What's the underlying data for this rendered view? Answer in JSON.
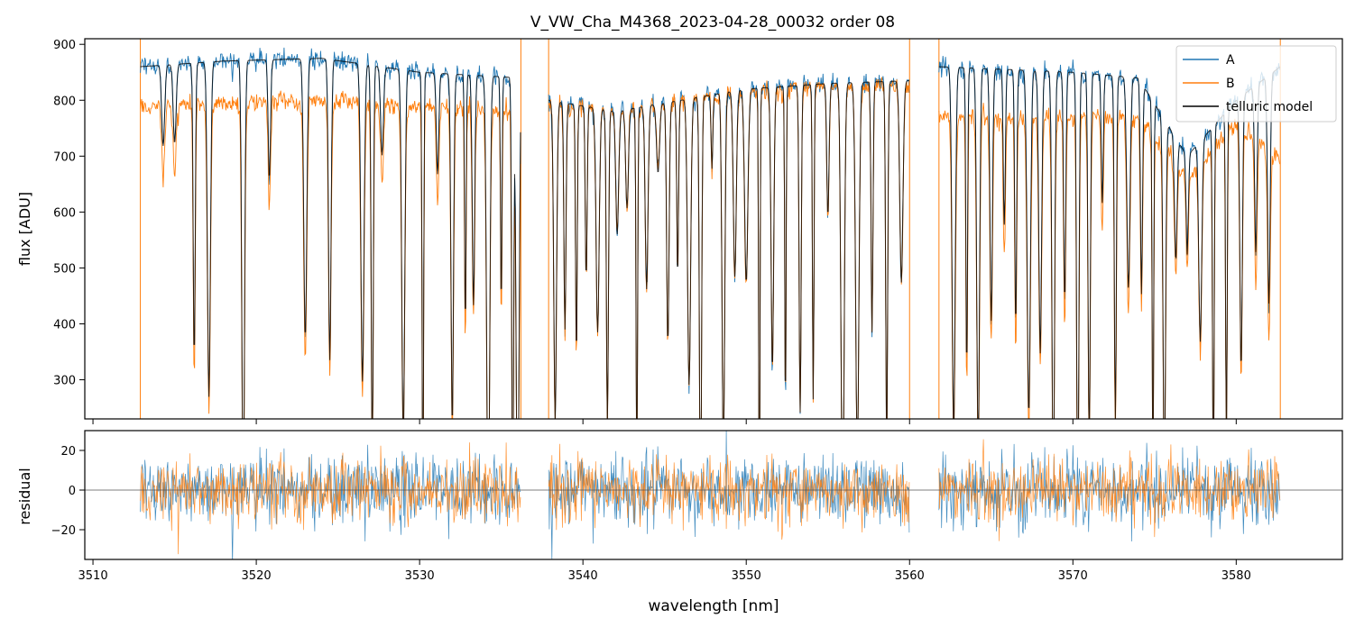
{
  "colors": {
    "A": "#1f77b4",
    "B": "#ff7f0e",
    "model": "#000000",
    "zero_line": "#555555"
  },
  "chart_data": {
    "type": "line",
    "title": "V_VW_Cha_M4368_2023-04-28_00032  order 08",
    "xlabel": "wavelength [nm]",
    "xlim": [
      3509.5,
      3586.5
    ],
    "x_ticks": [
      3510,
      3520,
      3530,
      3540,
      3550,
      3560,
      3570,
      3580
    ],
    "x_tick_labels": [
      "3510",
      "3520",
      "3530",
      "3540",
      "3550",
      "3560",
      "3570",
      "3580"
    ],
    "segments": [
      [
        3512.9,
        3536.2
      ],
      [
        3537.9,
        3560.0
      ],
      [
        3561.8,
        3582.7
      ]
    ],
    "panels": [
      {
        "ylabel": "flux [ADU]",
        "ylim": [
          230,
          910
        ],
        "y_ticks": [
          300,
          400,
          500,
          600,
          700,
          800,
          900
        ],
        "y_tick_labels": [
          "300",
          "400",
          "500",
          "600",
          "700",
          "800",
          "900"
        ],
        "legend": {
          "placement": "top-right",
          "entries": [
            "A",
            "B",
            "telluric model"
          ]
        },
        "series": [
          {
            "name": "A",
            "color_key": "A",
            "segment_levels": [
              {
                "x": [
                  3512.9,
                  3518,
                  3524,
                  3530,
                  3536.2
                ],
                "y": [
                  860,
                  870,
                  875,
                  850,
                  840
                ]
              },
              {
                "x": [
                  3537.9,
                  3542,
                  3546,
                  3550,
                  3555,
                  3560
                ],
                "y": [
                  800,
                  780,
                  800,
                  820,
                  830,
                  835
                ]
              },
              {
                "x": [
                  3561.8,
                  3566,
                  3570,
                  3574,
                  3577,
                  3580,
                  3582.7
                ],
                "y": [
                  860,
                  855,
                  850,
                  840,
                  700,
                  800,
                  860
                ]
              }
            ],
            "absorption_lines": [
              3514.3,
              3515.0,
              3516.2,
              3517.1,
              3519.2,
              3520.8,
              3523.0,
              3524.5,
              3526.5,
              3527.1,
              3527.7,
              3529.0,
              3530.2,
              3531.1,
              3532.0,
              3532.8,
              3533.3,
              3534.2,
              3535.0,
              3535.7,
              3536.0,
              3538.3,
              3538.9,
              3539.6,
              3540.2,
              3540.9,
              3541.5,
              3542.1,
              3542.7,
              3543.3,
              3543.9,
              3544.6,
              3545.2,
              3545.8,
              3546.5,
              3547.2,
              3547.9,
              3548.6,
              3549.3,
              3550.0,
              3550.8,
              3551.6,
              3552.4,
              3553.3,
              3554.1,
              3555.0,
              3555.9,
              3556.8,
              3557.7,
              3558.6,
              3559.5,
              3562.7,
              3563.5,
              3564.2,
              3565.0,
              3565.8,
              3566.5,
              3567.3,
              3568.0,
              3568.8,
              3569.5,
              3570.3,
              3571.0,
              3571.8,
              3572.6,
              3573.4,
              3574.2,
              3574.9,
              3575.6,
              3576.3,
              3577.0,
              3577.8,
              3578.6,
              3579.4,
              3580.3,
              3581.2,
              3582.0
            ]
          },
          {
            "name": "B",
            "color_key": "B",
            "segment_levels": [
              {
                "x": [
                  3512.9,
                  3518,
                  3524,
                  3530,
                  3536.2
                ],
                "y": [
                  790,
                  795,
                  800,
                  790,
                  780
                ]
              },
              {
                "x": [
                  3537.9,
                  3542,
                  3546,
                  3550,
                  3555,
                  3560
                ],
                "y": [
                  790,
                  780,
                  800,
                  815,
                  825,
                  830
                ]
              },
              {
                "x": [
                  3561.8,
                  3566,
                  3570,
                  3574,
                  3577,
                  3580,
                  3582.7
                ],
                "y": [
                  770,
                  770,
                  770,
                  770,
                  660,
                  760,
                  690
                ]
              }
            ]
          },
          {
            "name": "telluric model",
            "color_key": "model"
          }
        ]
      },
      {
        "ylabel": "residual",
        "ylim": [
          -35,
          30
        ],
        "y_ticks": [
          -20,
          0,
          20
        ],
        "y_tick_labels": [
          "−20",
          "0",
          "20"
        ],
        "zero_line": 0,
        "noise_sigma_A": 9,
        "noise_sigma_B": 8
      }
    ]
  }
}
